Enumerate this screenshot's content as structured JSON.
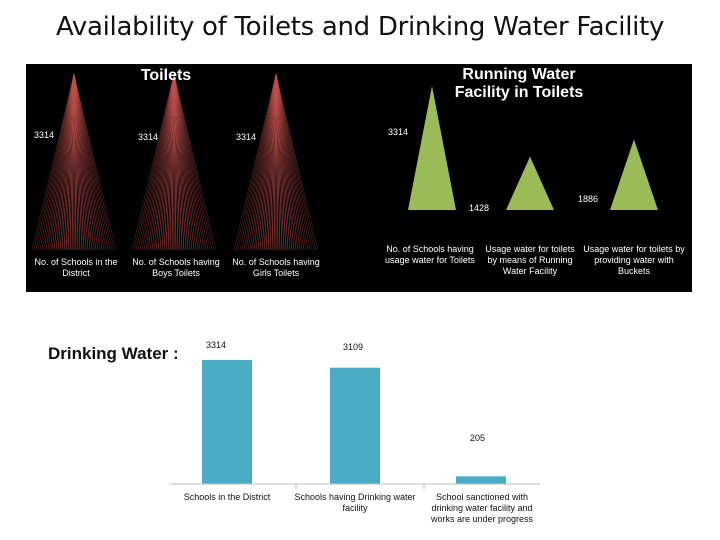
{
  "title": "Availability of Toilets and Drinking Water Facility",
  "colors": {
    "panel_bg": "#000000",
    "toilet_series": "#c0504d",
    "water_series": "#9bbb59",
    "drinking_series": "#4bacc6"
  },
  "chart_data": [
    {
      "type": "bar",
      "title": "Toilets",
      "categories": [
        "No. of Schools in the District",
        "No. of Schools having Boys Toilets",
        "No. of Schools having Girls Toilets"
      ],
      "values": [
        3314,
        3314,
        3314
      ],
      "value_labels": [
        "3314",
        "3314",
        "3314"
      ],
      "ylim": [
        0,
        3314
      ]
    },
    {
      "type": "bar",
      "title": "Running Water Facility in Toilets",
      "categories": [
        "No. of Schools having usage water for Toilets",
        "Usage water for toilets by means of Running Water Facility",
        "Usage water for toilets by providing water with Buckets"
      ],
      "values": [
        3314,
        1428,
        1886
      ],
      "value_labels": [
        "3314",
        "1428",
        "1886"
      ],
      "ylim": [
        0,
        3314
      ]
    },
    {
      "type": "bar",
      "title": "Drinking Water :",
      "categories": [
        "Schools in the District",
        "Schools having Drinking water facility",
        "School sanctioned with drinking water facility and works are under progress"
      ],
      "values": [
        3314,
        3109,
        205
      ],
      "value_labels": [
        "3314",
        "3109",
        "205"
      ],
      "ylim": [
        0,
        3314
      ]
    }
  ]
}
